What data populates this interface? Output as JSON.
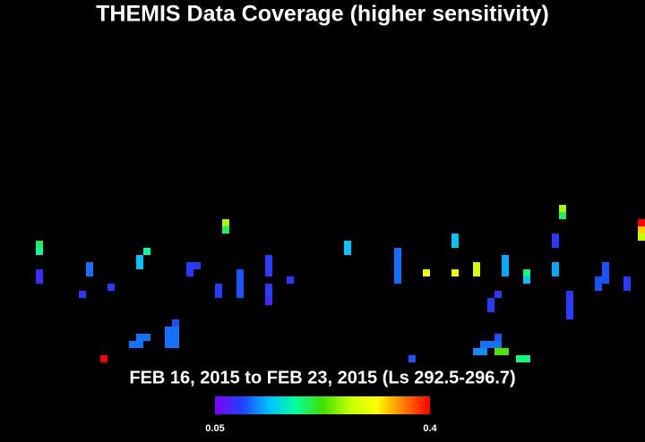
{
  "chart_data": {
    "type": "coverage",
    "title": "THEMIS Data Coverage (higher sensitivity)",
    "subtitle": "FEB 16, 2015 to FEB 23, 2015 (Ls 292.5-296.7)",
    "colormap": [
      "#8000ff",
      "#2040ff",
      "#00c0ff",
      "#00ffa0",
      "#40e000",
      "#c0ff00",
      "#ffff00",
      "#ff8000",
      "#ff0000"
    ],
    "clim": [
      0.05,
      0.4
    ],
    "colorbar_ticks": [
      0.05,
      0.4
    ],
    "x": [
      5,
      5,
      5,
      5,
      12,
      12,
      11,
      15,
      14,
      19,
      19,
      20,
      18,
      19,
      19,
      20,
      23,
      24,
      23,
      24,
      23,
      24,
      24,
      26,
      26,
      27,
      30,
      30,
      31,
      31,
      33,
      33,
      33,
      33,
      37,
      37,
      37,
      37,
      37,
      37,
      40,
      48,
      48,
      55,
      55,
      55,
      55,
      55,
      57,
      59,
      63,
      63,
      63,
      66,
      66,
      68,
      68,
      69,
      70,
      70,
      70,
      69,
      67,
      68,
      69,
      66,
      67,
      69,
      70,
      72,
      73,
      73,
      73,
      77,
      77,
      77,
      77,
      78,
      78,
      79,
      79,
      79,
      79,
      83,
      83,
      84,
      84,
      84,
      87,
      87,
      89,
      89,
      89
    ],
    "y": [
      33,
      34,
      37,
      38,
      36,
      37,
      40,
      39,
      49,
      35,
      36,
      34,
      47,
      47,
      46,
      46,
      47,
      47,
      45,
      45,
      46,
      46,
      44,
      36,
      37,
      36,
      39,
      40,
      30,
      31,
      37,
      38,
      39,
      40,
      35,
      36,
      37,
      39,
      40,
      41,
      38,
      33,
      34,
      34,
      35,
      36,
      37,
      38,
      49,
      37,
      32,
      33,
      37,
      36,
      37,
      41,
      42,
      40,
      35,
      36,
      37,
      46,
      47,
      47,
      47,
      48,
      48,
      48,
      48,
      49,
      49,
      37,
      38,
      32,
      33,
      36,
      37,
      28,
      29,
      40,
      41,
      42,
      43,
      38,
      39,
      36,
      37,
      38,
      38,
      39,
      30,
      31,
      32
    ],
    "values": [
      0.2,
      0.18,
      0.08,
      0.08,
      0.11,
      0.11,
      0.09,
      0.09,
      0.4,
      0.14,
      0.14,
      0.18,
      0.11,
      0.11,
      0.11,
      0.11,
      0.11,
      0.11,
      0.11,
      0.11,
      0.11,
      0.11,
      0.1,
      0.09,
      0.09,
      0.09,
      0.09,
      0.09,
      0.26,
      0.2,
      0.1,
      0.1,
      0.1,
      0.1,
      0.09,
      0.09,
      0.09,
      0.09,
      0.09,
      0.08,
      0.09,
      0.14,
      0.14,
      0.11,
      0.11,
      0.11,
      0.11,
      0.11,
      0.1,
      0.3,
      0.14,
      0.14,
      0.3,
      0.28,
      0.28,
      0.09,
      0.09,
      0.09,
      0.13,
      0.13,
      0.13,
      0.1,
      0.11,
      0.11,
      0.11,
      0.12,
      0.12,
      0.23,
      0.23,
      0.19,
      0.19,
      0.19,
      0.14,
      0.09,
      0.09,
      0.13,
      0.13,
      0.26,
      0.2,
      0.09,
      0.09,
      0.09,
      0.09,
      0.1,
      0.1,
      0.1,
      0.1,
      0.1,
      0.09,
      0.09,
      0.4,
      0.33,
      0.27
    ]
  }
}
